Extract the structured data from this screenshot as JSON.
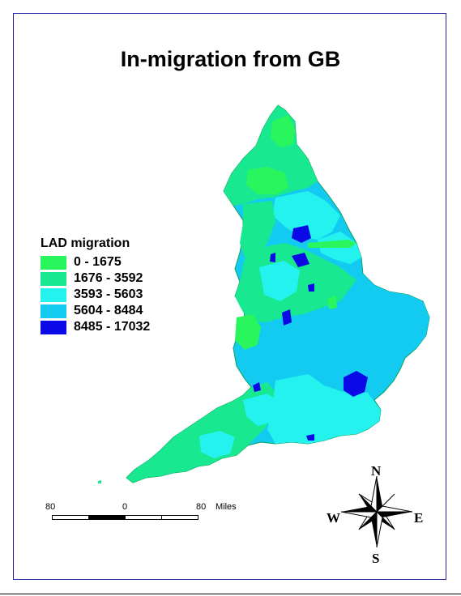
{
  "title": "In-migration from GB",
  "legend": {
    "title": "LAD migration",
    "items": [
      {
        "label": "0 - 1675",
        "color": "#29f55c"
      },
      {
        "label": "1676 - 3592",
        "color": "#18e88f"
      },
      {
        "label": "3593 - 5603",
        "color": "#24f2ee"
      },
      {
        "label": "5604 - 8484",
        "color": "#13cbf0"
      },
      {
        "label": "8485 - 17032",
        "color": "#0b0ae6"
      }
    ]
  },
  "scale": {
    "labels": [
      "80",
      "0",
      "80"
    ],
    "unit": "Miles"
  },
  "compass": {
    "north": "N",
    "south": "S",
    "east": "E",
    "west": "W"
  },
  "colors": {
    "frame": "#1f1fa0",
    "coast": "#0aa05a"
  }
}
